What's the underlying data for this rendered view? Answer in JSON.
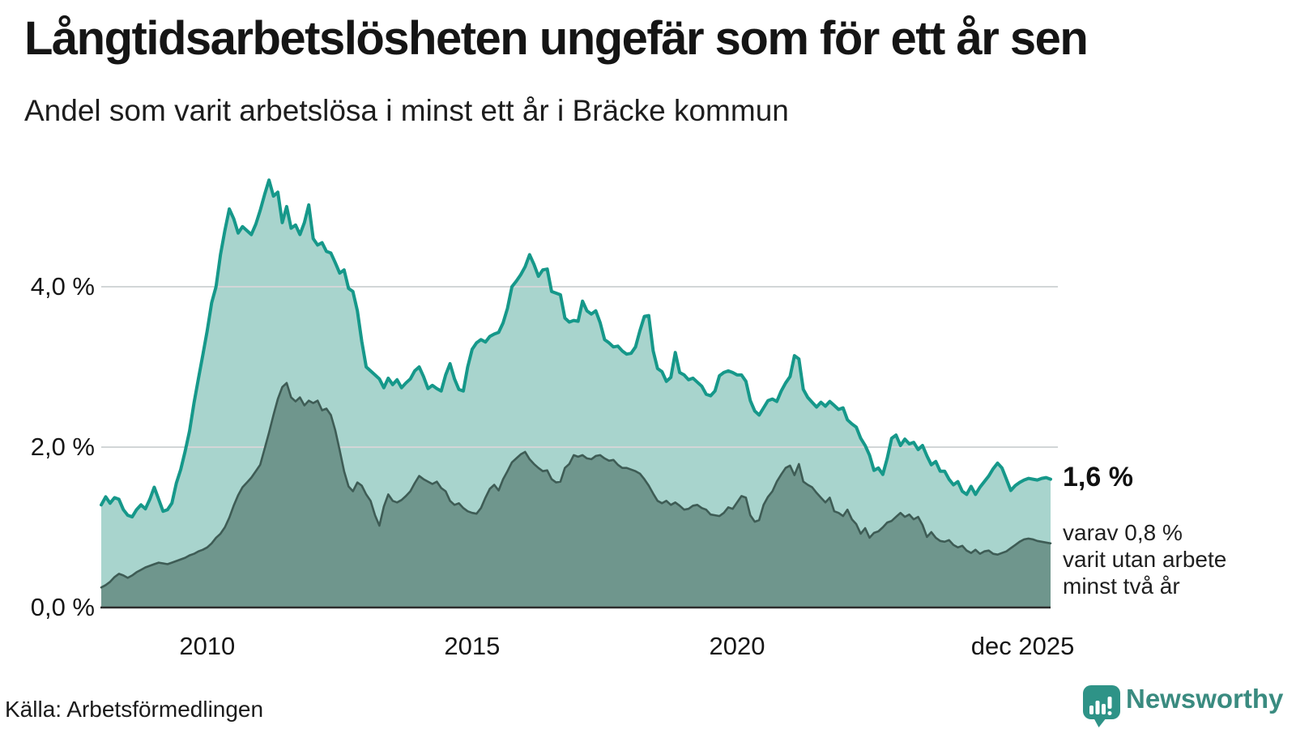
{
  "header": {
    "title": "Långtidsarbetslösheten ungefär som för ett år sen",
    "subtitle": "Andel som varit arbetslösa i minst ett år i Bräcke kommun"
  },
  "chart_data": {
    "type": "area",
    "title": "Långtidsarbetslösheten ungefär som för ett år sen",
    "subtitle": "Andel som varit arbetslösa i minst ett år i Bräcke kommun",
    "unit": "%",
    "x_start": "2008-01",
    "x_end": "2025-12",
    "x_frequency": "monthly",
    "ylim": [
      0,
      5.6
    ],
    "grid": "horizontal",
    "y_gridline_values": [
      2,
      4
    ],
    "y_ticks": [
      {
        "label": "0,0 %",
        "value": 0
      },
      {
        "label": "2,0 %",
        "value": 2
      },
      {
        "label": "4,0 %",
        "value": 4
      }
    ],
    "x_ticks": [
      {
        "label": "2010",
        "month_index": 24
      },
      {
        "label": "2015",
        "month_index": 84
      },
      {
        "label": "2020",
        "month_index": 144
      },
      {
        "label": "dec 2025",
        "month_index": 215
      }
    ],
    "colors": {
      "grid": "#d2d6d7",
      "axis": "#2d2d2d",
      "background": "#ffffff"
    },
    "series": [
      {
        "name": "arbetslösa minst ett år",
        "color": "#16988a",
        "fill": "#a8d4cd",
        "line_width": 4,
        "values": [
          1.28,
          1.38,
          1.3,
          1.37,
          1.35,
          1.22,
          1.15,
          1.13,
          1.22,
          1.28,
          1.23,
          1.35,
          1.5,
          1.35,
          1.2,
          1.22,
          1.3,
          1.55,
          1.72,
          1.95,
          2.2,
          2.55,
          2.85,
          3.15,
          3.45,
          3.8,
          4.0,
          4.4,
          4.7,
          4.97,
          4.85,
          4.67,
          4.75,
          4.7,
          4.65,
          4.78,
          4.95,
          5.15,
          5.33,
          5.13,
          5.18,
          4.8,
          5.0,
          4.73,
          4.77,
          4.65,
          4.8,
          5.02,
          4.6,
          4.52,
          4.55,
          4.44,
          4.42,
          4.3,
          4.17,
          4.21,
          3.98,
          3.94,
          3.7,
          3.32,
          3.0,
          2.95,
          2.9,
          2.85,
          2.74,
          2.86,
          2.78,
          2.84,
          2.74,
          2.8,
          2.85,
          2.95,
          3.0,
          2.88,
          2.73,
          2.77,
          2.73,
          2.7,
          2.9,
          3.04,
          2.85,
          2.72,
          2.7,
          3.0,
          3.22,
          3.3,
          3.34,
          3.31,
          3.38,
          3.41,
          3.43,
          3.55,
          3.73,
          4.0,
          4.07,
          4.15,
          4.25,
          4.4,
          4.28,
          4.13,
          4.21,
          4.22,
          3.94,
          3.92,
          3.9,
          3.61,
          3.56,
          3.58,
          3.57,
          3.82,
          3.7,
          3.66,
          3.7,
          3.55,
          3.34,
          3.3,
          3.25,
          3.26,
          3.2,
          3.16,
          3.17,
          3.25,
          3.45,
          3.63,
          3.64,
          3.2,
          2.98,
          2.94,
          2.82,
          2.87,
          3.18,
          2.93,
          2.9,
          2.84,
          2.86,
          2.81,
          2.76,
          2.66,
          2.64,
          2.7,
          2.89,
          2.93,
          2.95,
          2.93,
          2.9,
          2.9,
          2.82,
          2.58,
          2.45,
          2.4,
          2.49,
          2.58,
          2.6,
          2.57,
          2.7,
          2.8,
          2.88,
          3.14,
          3.1,
          2.72,
          2.62,
          2.56,
          2.5,
          2.56,
          2.51,
          2.57,
          2.52,
          2.47,
          2.49,
          2.34,
          2.29,
          2.25,
          2.11,
          2.02,
          1.9,
          1.71,
          1.74,
          1.66,
          1.86,
          2.11,
          2.15,
          2.02,
          2.1,
          2.04,
          2.06,
          1.97,
          2.02,
          1.89,
          1.78,
          1.82,
          1.7,
          1.7,
          1.6,
          1.53,
          1.57,
          1.45,
          1.41,
          1.51,
          1.41,
          1.5,
          1.57,
          1.64,
          1.73,
          1.8,
          1.74,
          1.6,
          1.46,
          1.52,
          1.56,
          1.59,
          1.61,
          1.6,
          1.59,
          1.61,
          1.62,
          1.6
        ]
      },
      {
        "name": "varit utan arbete minst två år",
        "color": "#3e5c55",
        "fill": "#6f968d",
        "line_width": 2.6,
        "values": [
          0.25,
          0.28,
          0.32,
          0.38,
          0.42,
          0.4,
          0.37,
          0.4,
          0.44,
          0.47,
          0.5,
          0.52,
          0.54,
          0.56,
          0.55,
          0.54,
          0.56,
          0.58,
          0.6,
          0.62,
          0.65,
          0.67,
          0.7,
          0.72,
          0.75,
          0.8,
          0.87,
          0.92,
          1.0,
          1.12,
          1.27,
          1.4,
          1.5,
          1.56,
          1.62,
          1.7,
          1.78,
          1.98,
          2.18,
          2.4,
          2.6,
          2.75,
          2.8,
          2.62,
          2.57,
          2.62,
          2.52,
          2.58,
          2.55,
          2.58,
          2.46,
          2.48,
          2.4,
          2.21,
          1.96,
          1.7,
          1.51,
          1.45,
          1.56,
          1.52,
          1.41,
          1.33,
          1.15,
          1.02,
          1.26,
          1.41,
          1.33,
          1.31,
          1.34,
          1.39,
          1.45,
          1.55,
          1.64,
          1.6,
          1.57,
          1.54,
          1.57,
          1.49,
          1.45,
          1.33,
          1.28,
          1.3,
          1.24,
          1.2,
          1.18,
          1.17,
          1.24,
          1.37,
          1.48,
          1.53,
          1.46,
          1.6,
          1.7,
          1.81,
          1.86,
          1.91,
          1.94,
          1.85,
          1.79,
          1.74,
          1.7,
          1.71,
          1.6,
          1.56,
          1.57,
          1.74,
          1.79,
          1.9,
          1.88,
          1.9,
          1.86,
          1.85,
          1.89,
          1.9,
          1.86,
          1.83,
          1.84,
          1.78,
          1.74,
          1.74,
          1.72,
          1.7,
          1.67,
          1.6,
          1.52,
          1.42,
          1.33,
          1.3,
          1.33,
          1.28,
          1.31,
          1.27,
          1.22,
          1.23,
          1.27,
          1.28,
          1.24,
          1.22,
          1.16,
          1.15,
          1.14,
          1.18,
          1.25,
          1.23,
          1.31,
          1.39,
          1.37,
          1.15,
          1.07,
          1.09,
          1.28,
          1.38,
          1.45,
          1.57,
          1.66,
          1.74,
          1.77,
          1.65,
          1.79,
          1.57,
          1.53,
          1.5,
          1.43,
          1.37,
          1.31,
          1.37,
          1.2,
          1.18,
          1.14,
          1.22,
          1.1,
          1.04,
          0.92,
          0.99,
          0.87,
          0.93,
          0.95,
          1.0,
          1.06,
          1.08,
          1.13,
          1.18,
          1.13,
          1.16,
          1.1,
          1.13,
          1.03,
          0.88,
          0.94,
          0.87,
          0.83,
          0.82,
          0.84,
          0.78,
          0.75,
          0.77,
          0.71,
          0.68,
          0.72,
          0.67,
          0.7,
          0.71,
          0.67,
          0.66,
          0.68,
          0.7,
          0.74,
          0.78,
          0.82,
          0.85,
          0.86,
          0.85,
          0.83,
          0.82,
          0.81,
          0.8
        ]
      }
    ]
  },
  "annotations": {
    "latest_value": "1,6 %",
    "note_lines": [
      "varav 0,8 %",
      "varit utan arbete",
      "minst två år"
    ]
  },
  "footer": {
    "source": "Källa: Arbetsförmedlingen",
    "brand": "Newsworthy"
  }
}
